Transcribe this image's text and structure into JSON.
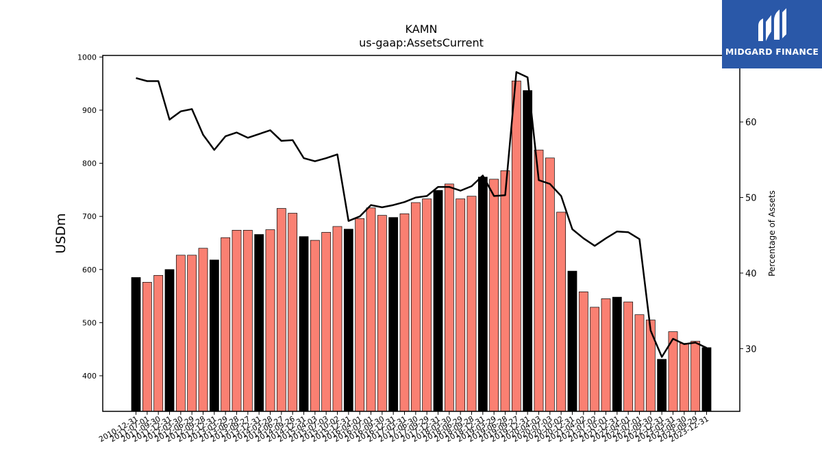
{
  "title": "KAMN",
  "subtitle": "us-gaap:AssetsCurrent",
  "logo": {
    "name": "MIDGARD FINANCE",
    "color": "#2a58a8"
  },
  "colors": {
    "quarter_bar": "#fa8072",
    "year_end_bar": "#000000",
    "line": "#000000"
  },
  "chart_data": {
    "type": "bar",
    "title": "KAMN",
    "subtitle": "us-gaap:AssetsCurrent",
    "ylabel": "USDm",
    "y2label": "Percentage of Assets",
    "ylim": [
      333,
      1003
    ],
    "y2lim": [
      21.7,
      68.8
    ],
    "yticks": [
      400,
      500,
      600,
      700,
      800,
      900,
      1000
    ],
    "y2ticks": [
      30,
      40,
      50,
      60
    ],
    "categories": [
      "2010-12-31",
      "2011-07-01",
      "2011-09-30",
      "2011-12-31",
      "2012-03-30",
      "2012-06-29",
      "2012-09-28",
      "2012-12-31",
      "2013-03-29",
      "2013-06-28",
      "2013-09-27",
      "2013-12-31",
      "2014-03-28",
      "2014-06-27",
      "2014-09-26",
      "2014-12-31",
      "2015-04-03",
      "2015-07-03",
      "2015-10-02",
      "2015-12-31",
      "2016-04-01",
      "2016-07-01",
      "2016-09-30",
      "2016-12-31",
      "2017-03-31",
      "2017-06-30",
      "2017-09-29",
      "2017-12-31",
      "2018-03-30",
      "2018-06-29",
      "2018-09-28",
      "2018-12-31",
      "2019-03-29",
      "2019-06-28",
      "2019-09-27",
      "2019-12-31",
      "2020-04-03",
      "2020-07-03",
      "2020-10-02",
      "2020-12-31",
      "2021-04-02",
      "2021-07-02",
      "2021-10-01",
      "2021-12-31",
      "2022-04-01",
      "2022-07-01",
      "2022-09-30",
      "2022-12-31",
      "2023-03-31",
      "2023-06-30",
      "2023-09-29",
      "2023-12-31"
    ],
    "year_end": [
      true,
      false,
      false,
      true,
      false,
      false,
      false,
      true,
      false,
      false,
      false,
      true,
      false,
      false,
      false,
      true,
      false,
      false,
      false,
      true,
      false,
      false,
      false,
      true,
      false,
      false,
      false,
      true,
      false,
      false,
      false,
      true,
      false,
      false,
      false,
      true,
      false,
      false,
      false,
      true,
      false,
      false,
      false,
      true,
      false,
      false,
      false,
      true,
      false,
      false,
      false,
      true
    ],
    "series": [
      {
        "name": "",
        "kind": "bar",
        "values": [
          585,
          576,
          589,
          600,
          627,
          627,
          640,
          618,
          660,
          674,
          674,
          666,
          675,
          715,
          706,
          662,
          655,
          670,
          681,
          676,
          696,
          716,
          702,
          698,
          705,
          726,
          733,
          749,
          761,
          733,
          738,
          774,
          770,
          786,
          955,
          937,
          825,
          810,
          708,
          597,
          558,
          529,
          545,
          548,
          539,
          515,
          505,
          431,
          483,
          461,
          465,
          453
        ]
      },
      {
        "name": "",
        "kind": "line",
        "axis": "right",
        "values": [
          65.8,
          65.4,
          65.4,
          60.3,
          61.4,
          61.7,
          58.3,
          56.3,
          58.1,
          58.6,
          57.9,
          58.4,
          58.9,
          57.5,
          57.6,
          55.2,
          54.8,
          55.2,
          55.7,
          46.9,
          47.5,
          49.0,
          48.7,
          49.0,
          49.4,
          50.0,
          50.2,
          51.4,
          51.4,
          50.9,
          51.5,
          52.9,
          50.2,
          50.3,
          66.6,
          65.9,
          52.3,
          51.8,
          50.2,
          45.8,
          44.6,
          43.6,
          44.6,
          45.5,
          45.4,
          44.5,
          32.4,
          28.9,
          31.3,
          30.6,
          30.8,
          30.1
        ]
      }
    ]
  }
}
